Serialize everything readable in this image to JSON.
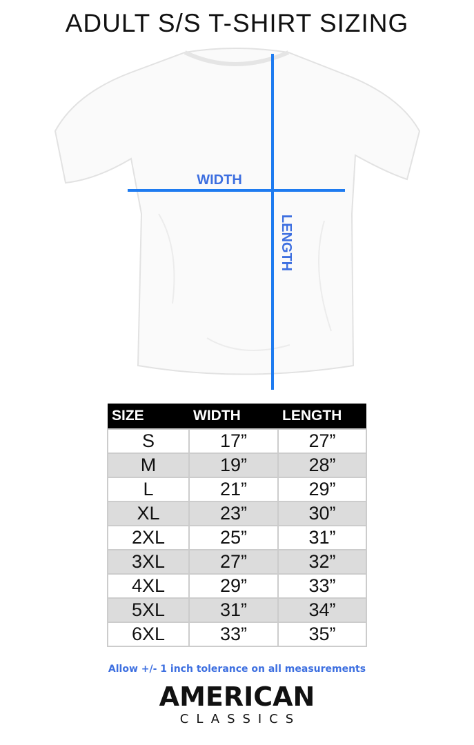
{
  "title": "ADULT S/S T-SHIRT SIZING",
  "diagram": {
    "width_label": "WIDTH",
    "length_label": "LENGTH",
    "line_color": "#1e7bf0",
    "label_color": "#3d6fe0"
  },
  "table": {
    "headers": [
      "SIZE",
      "WIDTH",
      "LENGTH"
    ],
    "rows": [
      [
        "S",
        "17”",
        "27”"
      ],
      [
        "M",
        "19”",
        "28”"
      ],
      [
        "L",
        "21”",
        "29”"
      ],
      [
        "XL",
        "23”",
        "30”"
      ],
      [
        "2XL",
        "25”",
        "31”"
      ],
      [
        "3XL",
        "27”",
        "32”"
      ],
      [
        "4XL",
        "29”",
        "33”"
      ],
      [
        "5XL",
        "31”",
        "34”"
      ],
      [
        "6XL",
        "33”",
        "35”"
      ]
    ]
  },
  "note": "Allow +/- 1 inch tolerance on all measurements",
  "logo": {
    "line1": "AMERICAN",
    "line2": "CLASSICS"
  }
}
